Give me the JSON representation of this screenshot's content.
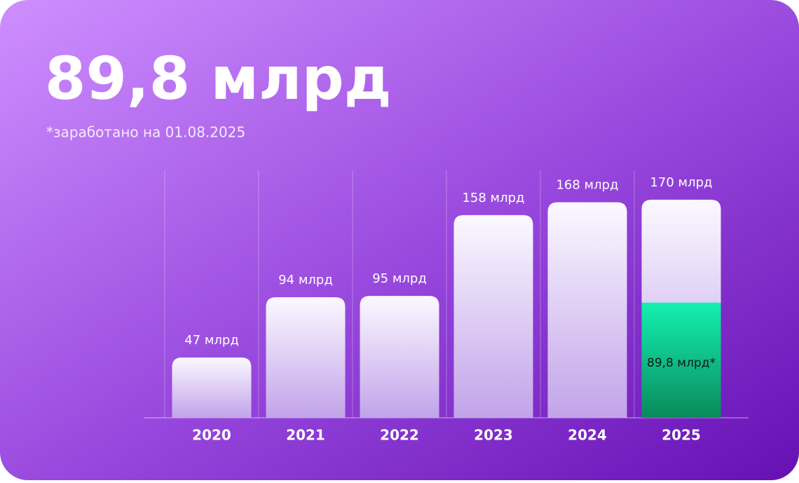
{
  "chart_data": {
    "type": "bar",
    "title": "89,8 млрд",
    "subtitle": "*заработано на 01.08.2025",
    "categories": [
      "2020",
      "2021",
      "2022",
      "2023",
      "2024",
      "2025"
    ],
    "values": [
      47,
      94,
      95,
      158,
      168,
      170
    ],
    "value_labels": [
      "47 млрд",
      "94 млрд",
      "95 млрд",
      "158 млрд",
      "168 млрд",
      "170 млрд"
    ],
    "highlight": {
      "values": [
        null,
        null,
        null,
        null,
        null,
        89.8
      ],
      "value_labels": [
        null,
        null,
        null,
        null,
        null,
        "89,8 млрд*"
      ],
      "color": "#12e6a6"
    }
  }
}
